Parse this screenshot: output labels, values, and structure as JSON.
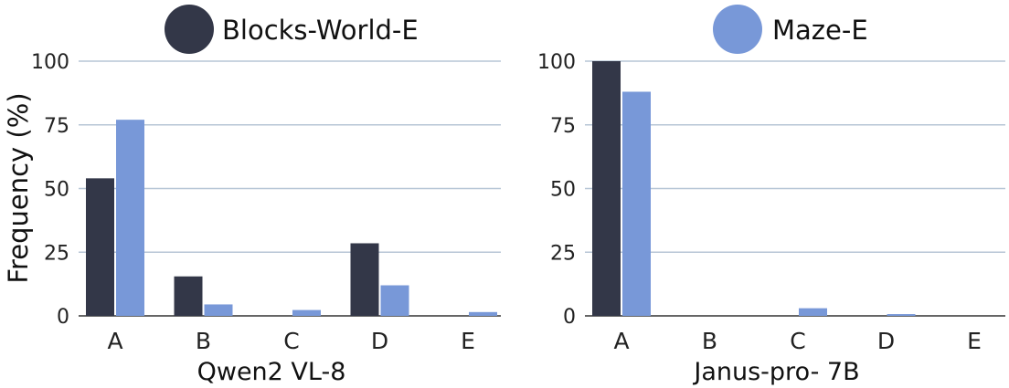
{
  "legend": [
    {
      "label": "Blocks-World-E",
      "color": "#333748"
    },
    {
      "label": "Maze-E",
      "color": "#7898d8"
    }
  ],
  "chart_data": [
    {
      "type": "bar",
      "xlabel": "Qwen2 VL-8",
      "ylabel": "Frequency  (%)",
      "categories": [
        "A",
        "B",
        "C",
        "D",
        "E"
      ],
      "ylim": [
        0,
        100
      ],
      "yticks": [
        "0",
        "25",
        "50",
        "75",
        "100"
      ],
      "grid": true,
      "series": [
        {
          "name": "Blocks-World-E",
          "color": "#333748",
          "values": [
            54,
            15.5,
            0,
            28.5,
            0
          ]
        },
        {
          "name": "Maze-E",
          "color": "#7898d8",
          "values": [
            77,
            4.5,
            2.3,
            12,
            1.5
          ]
        }
      ]
    },
    {
      "type": "bar",
      "xlabel": "Janus-pro- 7B",
      "ylabel": "",
      "categories": [
        "A",
        "B",
        "C",
        "D",
        "E"
      ],
      "ylim": [
        0,
        100
      ],
      "yticks": [
        "0",
        "25",
        "50",
        "75",
        "100"
      ],
      "grid": true,
      "series": [
        {
          "name": "Blocks-World-E",
          "color": "#333748",
          "values": [
            100,
            0,
            0,
            0,
            0
          ]
        },
        {
          "name": "Maze-E",
          "color": "#7898d8",
          "values": [
            88,
            0,
            3,
            0.7,
            0
          ]
        }
      ]
    }
  ]
}
